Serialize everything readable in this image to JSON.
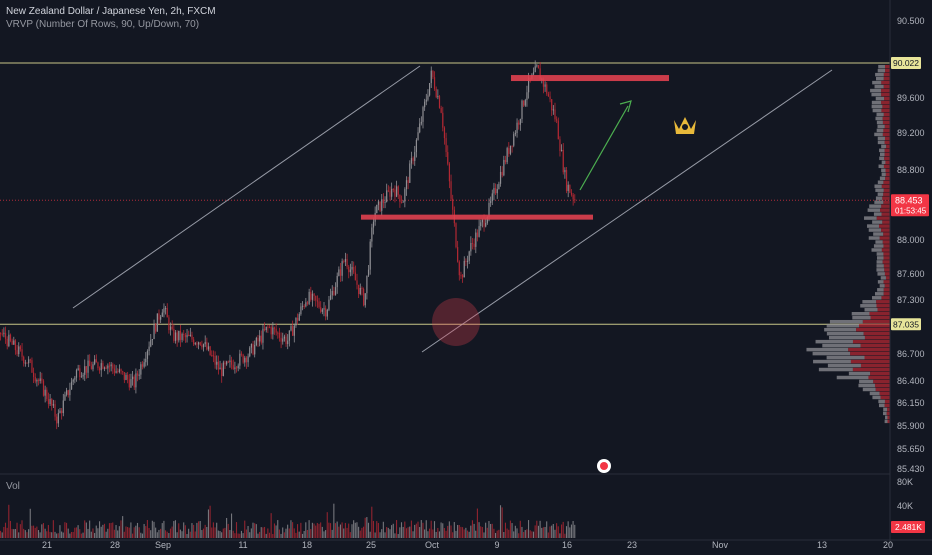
{
  "header": {
    "title": "New Zealand Dollar / Japanese Yen, 2h, FXCM",
    "indicator": "VRVP (Number Of Rows, 90, Up/Down, 70)"
  },
  "volume_label": "Vol",
  "chart_data": {
    "type": "candlestick",
    "price_ticks": [
      "90.500",
      "89.600",
      "89.200",
      "88.800",
      "88.000",
      "87.600",
      "87.300",
      "86.700",
      "86.400",
      "86.150",
      "85.900",
      "85.650",
      "85.430"
    ],
    "price_tick_values": [
      90.5,
      89.6,
      89.2,
      88.8,
      88.0,
      87.6,
      87.3,
      86.7,
      86.4,
      86.15,
      85.9,
      85.65,
      85.43
    ],
    "time_ticks": [
      "21",
      "28",
      "Sep",
      "11",
      "18",
      "25",
      "Oct",
      "9",
      "16",
      "23",
      "Nov",
      "13",
      "20"
    ],
    "volume_ticks": [
      "80K",
      "40K"
    ],
    "badges": {
      "resistance_label": "90.022",
      "support_label": "87.035",
      "current_price": "88.453",
      "countdown": "01:53:45",
      "current_volume": "2.481K"
    },
    "levels": {
      "resistance": 90.022,
      "support": 87.035,
      "current": 88.453
    },
    "price_path": [
      [
        "Aug 16",
        86.95
      ],
      [
        "Aug 19",
        86.6
      ],
      [
        "Aug 21",
        86.2
      ],
      [
        "Aug 22",
        85.95
      ],
      [
        "Aug 24",
        86.5
      ],
      [
        "Aug 27",
        86.6
      ],
      [
        "Aug 30",
        86.35
      ],
      [
        "Sep 1",
        86.95
      ],
      [
        "Sep 2",
        87.25
      ],
      [
        "Sep 3",
        86.9
      ],
      [
        "Sep 6",
        86.85
      ],
      [
        "Sep 8",
        86.5
      ],
      [
        "Sep 11",
        86.7
      ],
      [
        "Sep 13",
        87.0
      ],
      [
        "Sep 15",
        86.85
      ],
      [
        "Sep 17",
        87.35
      ],
      [
        "Sep 19",
        87.2
      ],
      [
        "Sep 21",
        87.8
      ],
      [
        "Sep 22",
        87.55
      ],
      [
        "Sep 23",
        87.3
      ],
      [
        "Sep 24",
        88.3
      ],
      [
        "Sep 26",
        88.6
      ],
      [
        "Sep 27",
        88.45
      ],
      [
        "Sep 29",
        89.4
      ],
      [
        "Sep 30",
        89.9
      ],
      [
        "Oct 1",
        89.5
      ],
      [
        "Oct 2",
        88.5
      ],
      [
        "Oct 3",
        87.55
      ],
      [
        "Oct 4",
        87.9
      ],
      [
        "Oct 6",
        88.35
      ],
      [
        "Oct 7",
        88.7
      ],
      [
        "Oct 9",
        89.35
      ],
      [
        "Oct 10",
        89.75
      ],
      [
        "Oct 11",
        89.95
      ],
      [
        "Oct 12",
        89.7
      ],
      [
        "Oct 13",
        89.35
      ],
      [
        "Oct 14",
        88.65
      ],
      [
        "Oct 15",
        88.45
      ]
    ],
    "volume_profile": {
      "peak_price": 86.75,
      "range": [
        85.9,
        90.0
      ]
    },
    "annotations": {
      "ascending_channel": "two parallel trendlines",
      "resistance_zone_price": 89.85,
      "support_zone_price": 88.26,
      "projected_arrow": "green, pointing up",
      "circle_highlight": "Oct 3 low near 87.035"
    },
    "colors": {
      "background": "#131722",
      "up": "#8f8f94",
      "down": "#b22833",
      "level_line": "#e8e59a",
      "zone": "#e0404f",
      "arrow": "#4caf50",
      "price_badge": "#f23645",
      "trendline": "#b8bcc8",
      "logo": "#e8b93a"
    },
    "grid": false,
    "legend": "none"
  }
}
